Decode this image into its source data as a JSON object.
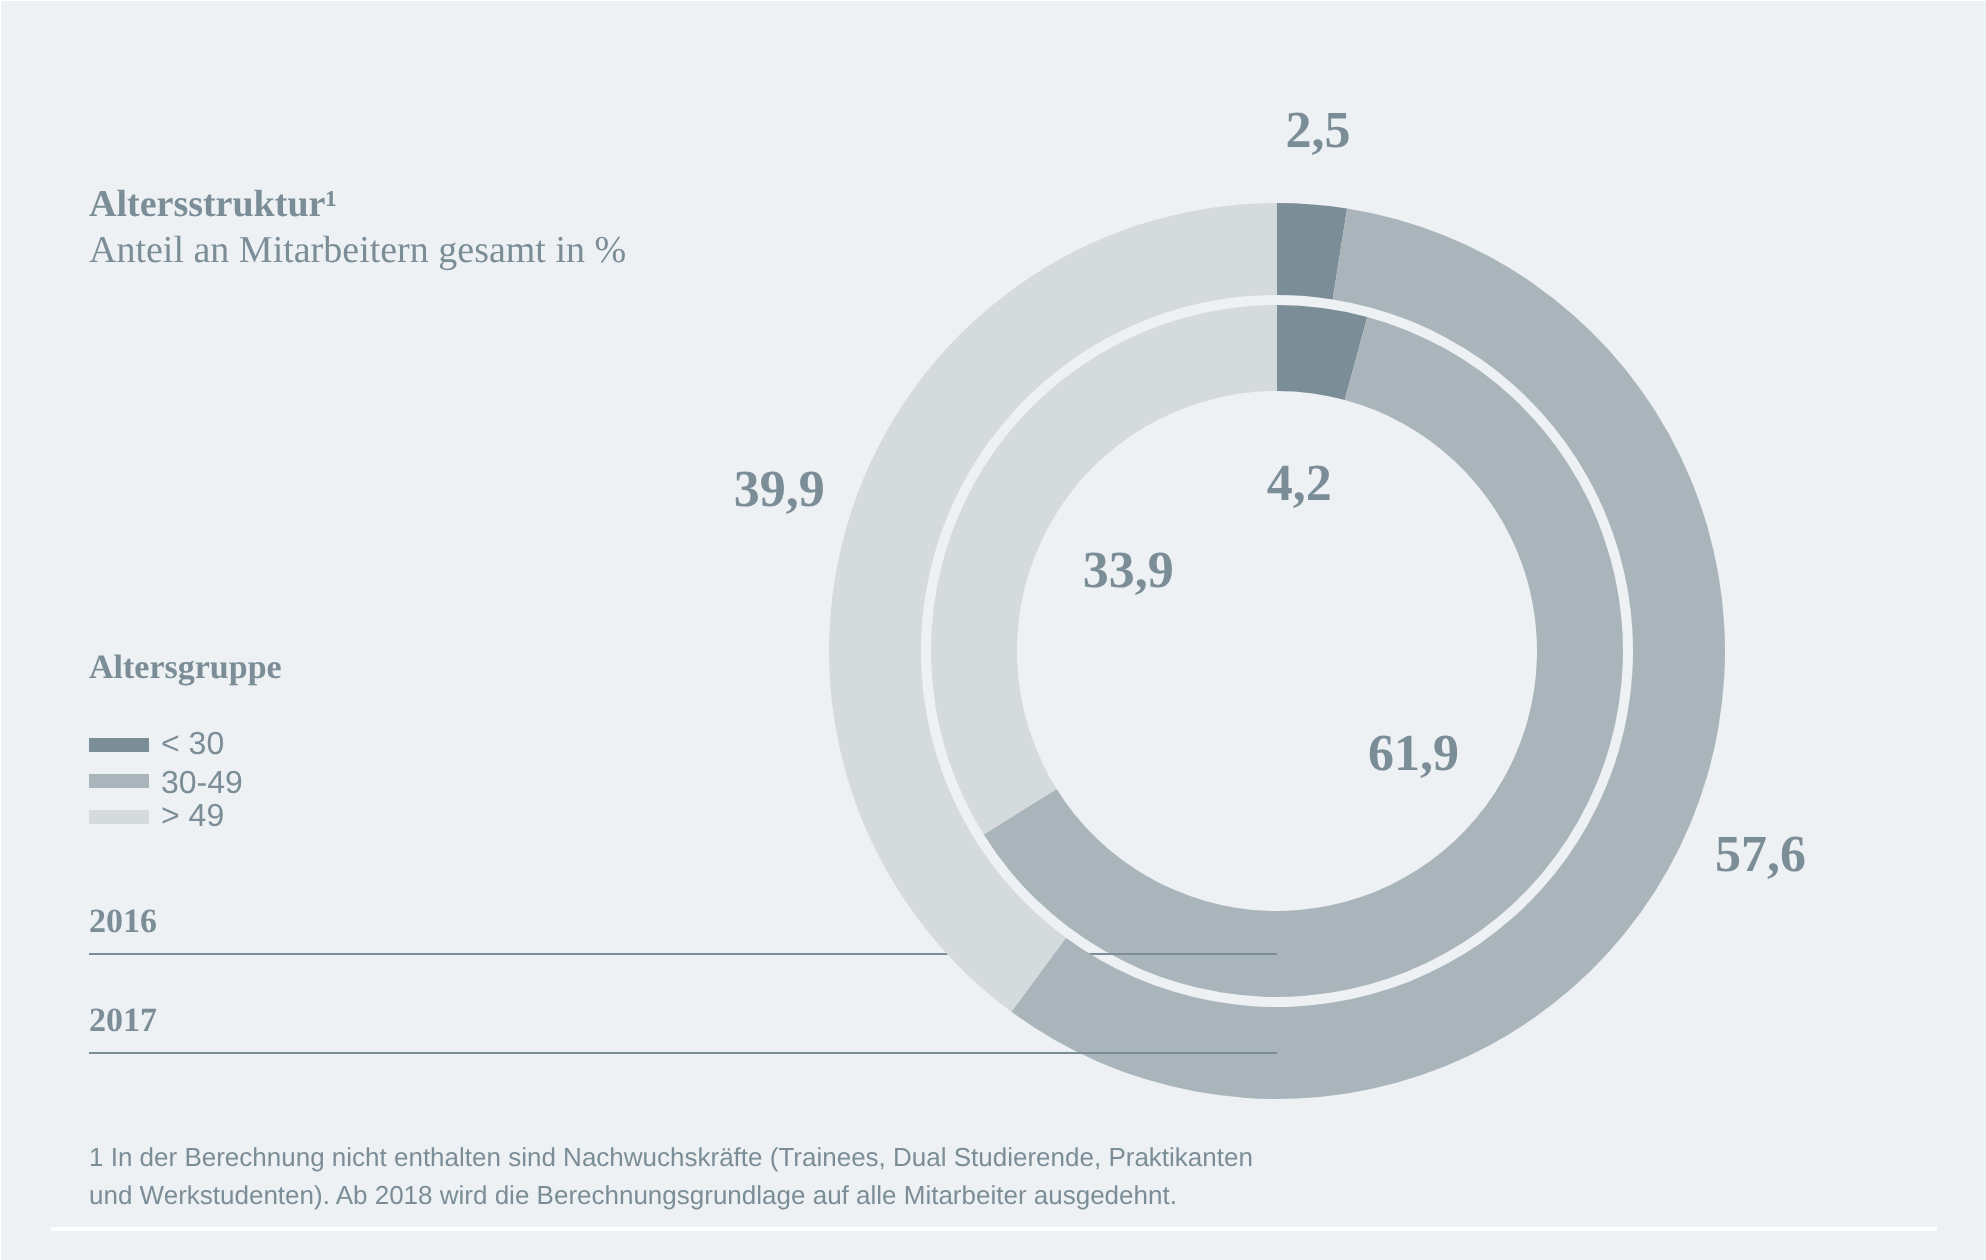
{
  "chart_data": {
    "type": "donut",
    "title": "Altersstruktur¹",
    "subtitle": "Anteil an Mitarbeitern gesamt in %",
    "categories": [
      "< 30",
      "30-49",
      "> 49"
    ],
    "colors": [
      "#7b8d97",
      "#a9b5bb",
      "#d5dadd"
    ],
    "series": [
      {
        "name": "2016",
        "values": [
          4.2,
          61.9,
          33.9
        ],
        "value_labels": [
          "4,2",
          "61,9",
          "33,9"
        ]
      },
      {
        "name": "2017",
        "values": [
          2.5,
          57.6,
          39.9
        ],
        "value_labels": [
          "2,5",
          "57,6",
          "39,9"
        ]
      }
    ],
    "legend": "left",
    "legend_title": "Altersgruppe",
    "annotations": [
      "1  In der Berechnung nicht enthalten sind Nachwuchskräfte (Trainees, Dual Studierende, Praktikanten\n   und Werkstudenten). Ab 2018 wird die Berechnungsgrundlage auf alle Mitarbeiter ausgedehnt."
    ]
  }
}
